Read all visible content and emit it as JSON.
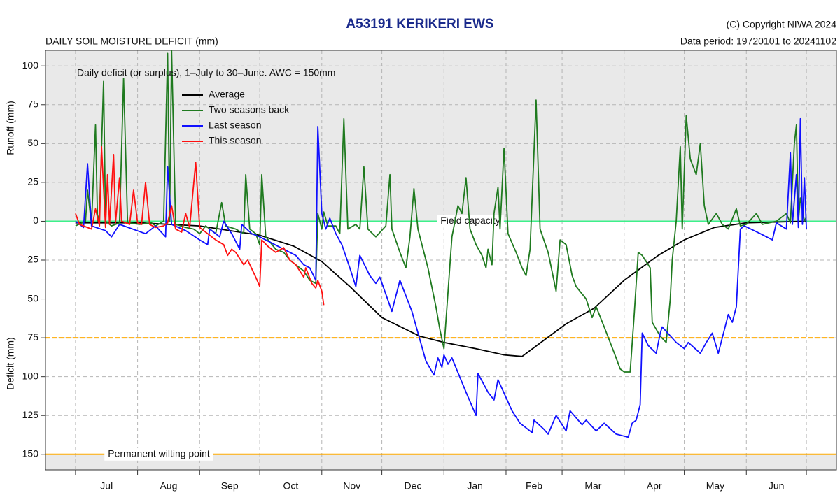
{
  "chart_data": {
    "type": "line",
    "title": "A53191  KERIKERI EWS",
    "subtitle": "DAILY SOIL MOISTURE DEFICIT (mm)",
    "copyright": "(C) Copyright NIWA  2024",
    "data_period": "Data period:  19720101  to  20241102",
    "y_label_top": "Runoff (mm)",
    "y_label_bottom": "Deficit (mm)",
    "legend_title": "Daily deficit (or surplus), 1–July to 30–June.  AWC = 150mm",
    "legend": "top-left",
    "grid": true,
    "xlim": [
      -15,
      380
    ],
    "ylim": [
      -160,
      110
    ],
    "xticks": [
      0,
      31,
      62,
      92,
      123,
      153,
      184,
      215,
      243,
      274,
      304,
      335,
      365
    ],
    "categories": [
      "Jul",
      "Aug",
      "Sep",
      "Oct",
      "Nov",
      "Dec",
      "Jan",
      "Feb",
      "Mar",
      "Apr",
      "May",
      "Jun"
    ],
    "yticks": [
      100,
      75,
      50,
      25,
      0,
      {
        "value": -25,
        "label": "25"
      },
      {
        "value": -50,
        "label": "50"
      },
      {
        "value": -75,
        "label": "75"
      },
      {
        "value": -100,
        "label": "100"
      },
      {
        "value": -125,
        "label": "125"
      },
      {
        "value": -150,
        "label": "150"
      }
    ],
    "hlines": [
      {
        "value": 0,
        "label": "Field capacity",
        "color": "#3df08a",
        "dashed": false
      },
      {
        "value": -75,
        "color": "#ffaa00",
        "dashed": true
      },
      {
        "value": -150,
        "label": "Permanent wilting point",
        "color": "#ffaa00",
        "dashed": false
      }
    ],
    "series": [
      {
        "name": "Average",
        "color": "#000000",
        "x": [
          0,
          32,
          62,
          92,
          109,
          123,
          137,
          153,
          172,
          184,
          200,
          214,
          223,
          245,
          259,
          274,
          291,
          304,
          319,
          335,
          365
        ],
        "values": [
          -1,
          -1,
          -3,
          -9,
          -16,
          -26,
          -42,
          -62,
          -74,
          -78,
          -82,
          -86,
          -87,
          -66,
          -56,
          -38,
          -22,
          -12,
          -4,
          -1,
          0
        ]
      },
      {
        "name": "Two seasons back",
        "color": "#1f7a1f",
        "x": [
          0,
          5,
          6,
          8,
          10,
          11,
          12,
          14,
          15,
          18,
          22,
          24,
          26,
          32,
          38,
          40,
          44,
          46,
          47,
          48,
          50,
          55,
          59,
          62,
          65,
          70,
          73,
          75,
          80,
          84,
          85,
          87,
          90,
          92,
          93,
          95,
          100,
          104,
          107,
          110,
          114,
          117,
          120,
          121,
          123,
          124,
          126,
          130,
          132,
          134,
          136,
          140,
          142,
          144,
          146,
          150,
          155,
          157,
          158,
          162,
          165,
          167,
          169,
          171,
          176,
          180,
          182,
          184,
          188,
          191,
          193,
          195,
          197,
          200,
          203,
          205,
          206,
          208,
          209,
          211,
          212,
          214,
          216,
          220,
          223,
          225,
          227,
          230,
          232,
          236,
          240,
          242,
          245,
          248,
          250,
          255,
          258,
          260,
          264,
          270,
          272,
          274,
          277,
          279,
          281,
          283,
          287,
          288,
          292,
          295,
          297,
          298,
          300,
          302,
          303,
          305,
          307,
          310,
          312,
          314,
          316,
          320,
          323,
          326,
          330,
          332,
          335,
          340,
          343,
          350,
          355,
          357,
          359,
          360,
          361,
          362,
          364,
          365
        ],
        "values": [
          -3,
          0,
          20,
          -2,
          62,
          0,
          5,
          90,
          0,
          -3,
          -1,
          92,
          -1,
          -2,
          -1,
          -3,
          0,
          108,
          0,
          110,
          -2,
          -4,
          -5,
          -8,
          -3,
          -8,
          12,
          -3,
          -5,
          -8,
          30,
          -5,
          -8,
          -15,
          30,
          -10,
          -18,
          -20,
          -25,
          -28,
          -32,
          -38,
          -40,
          5,
          -5,
          6,
          -3,
          -3,
          -8,
          66,
          -5,
          -2,
          -5,
          35,
          -5,
          -10,
          -3,
          30,
          -5,
          -20,
          -30,
          -10,
          21,
          -5,
          -30,
          -55,
          -70,
          -82,
          -10,
          10,
          5,
          28,
          -5,
          -15,
          -22,
          -30,
          -18,
          -28,
          5,
          22,
          -5,
          47,
          -8,
          -20,
          -30,
          -35,
          -18,
          78,
          -5,
          -20,
          -45,
          -12,
          -15,
          -35,
          -42,
          -50,
          -62,
          -55,
          -68,
          -88,
          -95,
          -97,
          -97,
          -60,
          -20,
          -22,
          -30,
          -65,
          -74,
          -78,
          -50,
          -25,
          0,
          48,
          -5,
          68,
          40,
          30,
          50,
          10,
          -2,
          5,
          -2,
          -5,
          8,
          -3,
          -2,
          5,
          -2,
          0,
          5,
          -1,
          50,
          62,
          0,
          15,
          0,
          3
        ]
      },
      {
        "name": "Last season",
        "color": "#1010ff",
        "x": [
          0,
          4,
          6,
          8,
          15,
          18,
          22,
          35,
          40,
          45,
          46,
          48,
          55,
          62,
          66,
          67,
          72,
          74,
          78,
          82,
          83,
          88,
          92,
          98,
          104,
          110,
          114,
          117,
          120,
          121,
          123,
          125,
          127,
          130,
          133,
          137,
          140,
          142,
          147,
          150,
          152,
          158,
          162,
          168,
          175,
          179,
          181,
          183,
          184,
          186,
          188,
          195,
          200,
          201,
          206,
          209,
          211,
          218,
          222,
          228,
          229,
          234,
          236,
          240,
          245,
          247,
          253,
          255,
          260,
          264,
          270,
          276,
          278,
          280,
          282,
          283,
          286,
          290,
          292,
          293,
          300,
          304,
          306,
          312,
          315,
          318,
          321,
          326,
          328,
          330,
          332,
          334,
          342,
          348,
          350,
          355,
          357,
          358,
          360,
          361,
          362,
          363,
          364,
          365
        ],
        "values": [
          0,
          -4,
          37,
          -3,
          -6,
          -10,
          -2,
          -8,
          -3,
          -10,
          35,
          -2,
          -6,
          -12,
          -15,
          -5,
          -10,
          0,
          -8,
          -18,
          -2,
          -8,
          -10,
          -14,
          -18,
          -22,
          -28,
          -30,
          -38,
          61,
          5,
          -5,
          2,
          -8,
          -15,
          -30,
          -42,
          -22,
          -35,
          -40,
          -36,
          -58,
          -38,
          -58,
          -90,
          -99,
          -88,
          -94,
          -86,
          -92,
          -88,
          -110,
          -125,
          -98,
          -110,
          -115,
          -102,
          -122,
          -130,
          -136,
          -128,
          -134,
          -137,
          -125,
          -135,
          -122,
          -131,
          -128,
          -135,
          -130,
          -137,
          -139,
          -130,
          -128,
          -118,
          -72,
          -80,
          -85,
          -72,
          -68,
          -78,
          -82,
          -78,
          -85,
          -78,
          -72,
          -85,
          -60,
          -65,
          -55,
          -5,
          -3,
          -8,
          -12,
          -1,
          -5,
          44,
          -2,
          30,
          -4,
          66,
          -2,
          28,
          -5
        ]
      },
      {
        "name": "This season",
        "color": "#ff1010",
        "x": [
          0,
          2,
          8,
          10,
          12,
          13,
          15,
          16,
          17,
          19,
          20,
          22,
          23,
          27,
          29,
          31,
          33,
          35,
          37,
          40,
          44,
          46,
          48,
          50,
          53,
          55,
          57,
          60,
          62,
          66,
          70,
          74,
          76,
          78,
          80,
          84,
          86,
          90,
          92,
          93,
          96,
          100,
          104,
          107,
          110,
          114,
          115,
          118,
          120,
          121,
          123,
          124
        ],
        "values": [
          5,
          -2,
          -5,
          8,
          -3,
          48,
          -4,
          30,
          -2,
          43,
          -1,
          28,
          0,
          -2,
          20,
          -1,
          -2,
          25,
          -2,
          -4,
          -3,
          -1,
          10,
          -5,
          -7,
          5,
          -4,
          38,
          -4,
          -8,
          -12,
          -15,
          -22,
          -18,
          -20,
          -28,
          -25,
          -36,
          -42,
          -12,
          -16,
          -20,
          -17,
          -25,
          -28,
          -36,
          -30,
          -40,
          -43,
          -38,
          -45,
          -54
        ]
      }
    ]
  }
}
